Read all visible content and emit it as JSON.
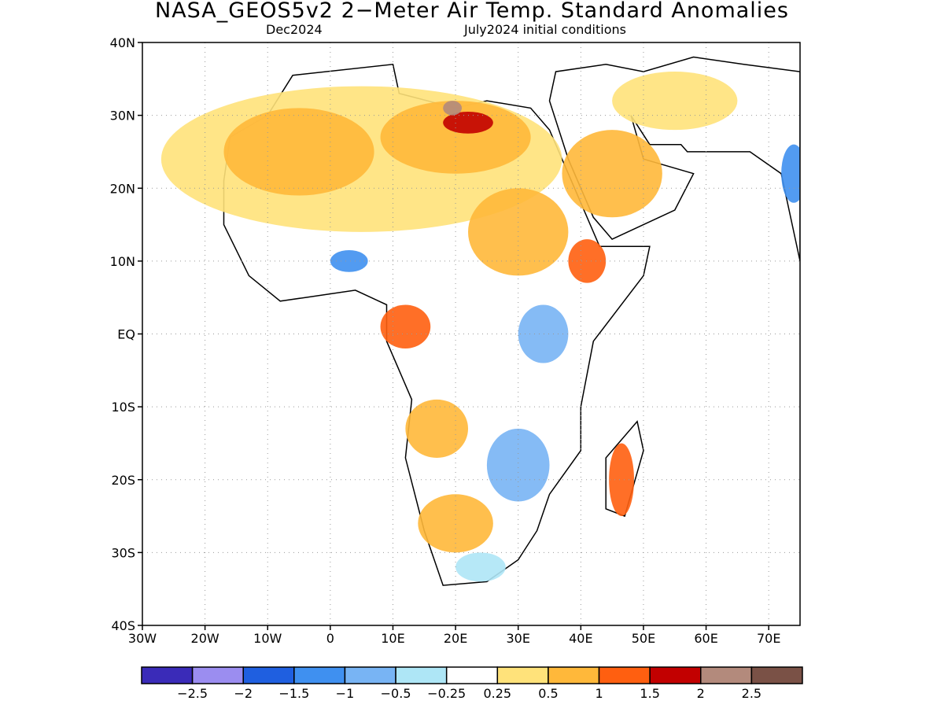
{
  "title": "NASA_GEOS5v2 2−Meter Air Temp. Standard Anomalies",
  "valid_month": "Dec2024",
  "initial_conditions": "July2024 initial conditions",
  "map": {
    "lon_range": [
      -30,
      75
    ],
    "lat_range": [
      -40,
      40
    ],
    "lat_ticks": [
      {
        "value": 40,
        "label": "40N"
      },
      {
        "value": 30,
        "label": "30N"
      },
      {
        "value": 20,
        "label": "20N"
      },
      {
        "value": 10,
        "label": "10N"
      },
      {
        "value": 0,
        "label": "EQ"
      },
      {
        "value": -10,
        "label": "10S"
      },
      {
        "value": -20,
        "label": "20S"
      },
      {
        "value": -30,
        "label": "30S"
      },
      {
        "value": -40,
        "label": "40S"
      }
    ],
    "lon_ticks": [
      {
        "value": -30,
        "label": "30W"
      },
      {
        "value": -20,
        "label": "20W"
      },
      {
        "value": -10,
        "label": "10W"
      },
      {
        "value": 0,
        "label": "0"
      },
      {
        "value": 10,
        "label": "10E"
      },
      {
        "value": 20,
        "label": "20E"
      },
      {
        "value": 30,
        "label": "30E"
      },
      {
        "value": 40,
        "label": "40E"
      },
      {
        "value": 50,
        "label": "50E"
      },
      {
        "value": 60,
        "label": "60E"
      },
      {
        "value": 70,
        "label": "70E"
      }
    ],
    "grid": true,
    "grid_lines": [
      -20,
      -10,
      0,
      10,
      20,
      30,
      40,
      50,
      60,
      70
    ],
    "grid_lats": [
      30,
      20,
      10,
      0,
      -10,
      -20,
      -30
    ]
  },
  "colorbar": {
    "colors": [
      "#3a2bb8",
      "#9b8df0",
      "#1f5fe0",
      "#3f90f0",
      "#78b4f4",
      "#aee6f6",
      "#ffffff",
      "#ffe27a",
      "#ffb83a",
      "#ff5f10",
      "#c20000",
      "#b38a7c",
      "#7a5146"
    ],
    "labels": [
      "−2.5",
      "−2",
      "−1.5",
      "−1",
      "−0.5",
      "−0.25",
      "0.25",
      "0.5",
      "1",
      "1.5",
      "2",
      "2.5"
    ]
  },
  "regions": [
    {
      "name": "north-africa-warm",
      "color": "#ffe27a",
      "lon": 5,
      "lat": 24,
      "rx": 32,
      "ry": 10
    },
    {
      "name": "west-sahara-orange",
      "color": "#ffb83a",
      "lon": -5,
      "lat": 25,
      "rx": 12,
      "ry": 6
    },
    {
      "name": "libya-orange",
      "color": "#ffb83a",
      "lon": 20,
      "lat": 27,
      "rx": 12,
      "ry": 5
    },
    {
      "name": "libya-red",
      "color": "#c20000",
      "lon": 22,
      "lat": 29,
      "rx": 4,
      "ry": 1.5
    },
    {
      "name": "libya-brown",
      "color": "#b38a7c",
      "lon": 19.5,
      "lat": 31,
      "rx": 1.5,
      "ry": 1
    },
    {
      "name": "sudan-orange",
      "color": "#ffb83a",
      "lon": 30,
      "lat": 14,
      "rx": 8,
      "ry": 6
    },
    {
      "name": "ethiopia-red",
      "color": "#ff5f10",
      "lon": 41,
      "lat": 10,
      "rx": 3,
      "ry": 3
    },
    {
      "name": "east-africa-blue",
      "color": "#78b4f4",
      "lon": 34,
      "lat": 0,
      "rx": 4,
      "ry": 4
    },
    {
      "name": "gulf-guinea-red",
      "color": "#ff5f10",
      "lon": 12,
      "lat": 1,
      "rx": 4,
      "ry": 3
    },
    {
      "name": "nigeria-blue",
      "color": "#3f90f0",
      "lon": 3,
      "lat": 10,
      "rx": 3,
      "ry": 1.5
    },
    {
      "name": "angola-orange",
      "color": "#ffb83a",
      "lon": 17,
      "lat": -13,
      "rx": 5,
      "ry": 4
    },
    {
      "name": "south-africa-orange",
      "color": "#ffb83a",
      "lon": 20,
      "lat": -26,
      "rx": 6,
      "ry": 4
    },
    {
      "name": "zimbabwe-blue",
      "color": "#78b4f4",
      "lon": 30,
      "lat": -18,
      "rx": 5,
      "ry": 5
    },
    {
      "name": "cape-blue",
      "color": "#aee6f6",
      "lon": 24,
      "lat": -32,
      "rx": 4,
      "ry": 2
    },
    {
      "name": "madagascar-orange",
      "color": "#ff5f10",
      "lon": 46.5,
      "lat": -20,
      "rx": 2,
      "ry": 5
    },
    {
      "name": "arabia-orange",
      "color": "#ffb83a",
      "lon": 45,
      "lat": 22,
      "rx": 8,
      "ry": 6
    },
    {
      "name": "iran-warm",
      "color": "#ffe27a",
      "lon": 55,
      "lat": 32,
      "rx": 10,
      "ry": 4
    },
    {
      "name": "india-blue",
      "color": "#3f90f0",
      "lon": 74,
      "lat": 22,
      "rx": 2,
      "ry": 4
    }
  ]
}
